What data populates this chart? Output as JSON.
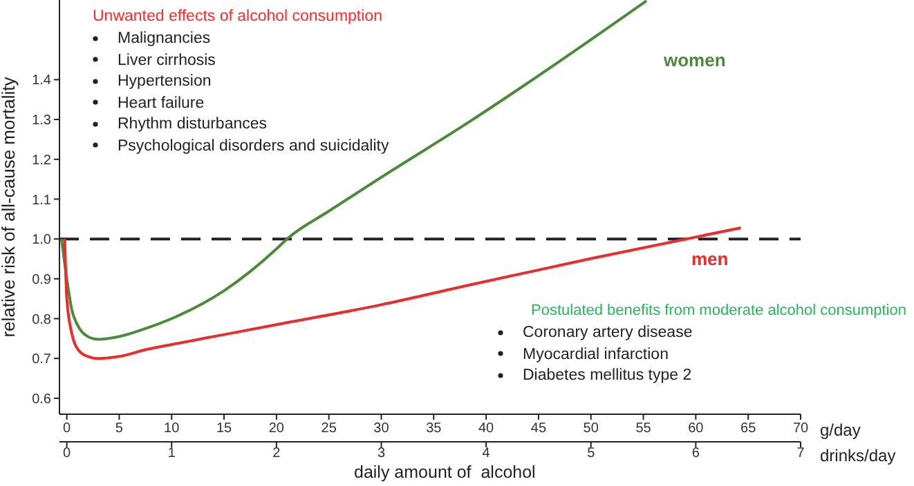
{
  "chart_data": {
    "type": "line",
    "title": "Unwanted effects of alcohol consumption",
    "subtitle": "Postulated benefits from moderate alcohol consumption",
    "ylabel": "relative risk of all-cause mortality",
    "xlabel": "g/day",
    "x2label": "drinks/day",
    "annotations": [
      "Malignancies",
      "Liver cirrhosis",
      "Hypertension",
      "Heart failure",
      "Rhythm disturbances",
      "Psychological disorders and suicidality",
      "Coronary artery disease",
      "Myocardial infarction",
      "Diabetes mellitus type 2",
      "daily amount of  alcohol"
    ],
    "xlim": [
      -0.7,
      70
    ],
    "xticks": [
      0,
      5,
      10,
      15,
      20,
      25,
      30,
      35,
      40,
      45,
      50,
      55,
      60,
      65,
      70
    ],
    "x2lim": [
      -0.07,
      7
    ],
    "x2ticks": [
      0,
      1,
      2,
      3,
      4,
      5,
      6,
      7
    ],
    "ylim": [
      0.56,
      1.6
    ],
    "yticks": [
      0.6,
      0.7,
      0.8,
      0.9,
      {
        "value": 1.0,
        "label": "1.0"
      },
      1.1,
      1.2,
      1.3,
      1.4
    ],
    "ref_lines": [
      {
        "axis": "y",
        "value": 1.0,
        "line_style": "dashed",
        "color": "#222222"
      }
    ],
    "series": [
      {
        "name": "women",
        "color": "#4a8a3a",
        "x": [
          -0.5,
          0,
          0.5,
          1,
          2,
          3,
          5,
          7.5,
          10,
          15,
          20,
          21,
          25,
          30,
          38.5,
          45,
          55.3
        ],
        "values": [
          1.0,
          0.9,
          0.82,
          0.785,
          0.755,
          0.748,
          0.755,
          0.775,
          0.8,
          0.87,
          0.975,
          1.0,
          1.07,
          1.155,
          1.296,
          1.41,
          1.598
        ]
      },
      {
        "name": "men",
        "color": "#ee2b2b",
        "x": [
          -0.2,
          0,
          0.5,
          1,
          2,
          3,
          5,
          7.5,
          10,
          15,
          20,
          30,
          38.5,
          50,
          64.3
        ],
        "values": [
          1.0,
          0.85,
          0.76,
          0.725,
          0.705,
          0.7,
          0.705,
          0.722,
          0.735,
          0.76,
          0.785,
          0.835,
          0.885,
          0.951,
          1.028
        ]
      }
    ]
  }
}
